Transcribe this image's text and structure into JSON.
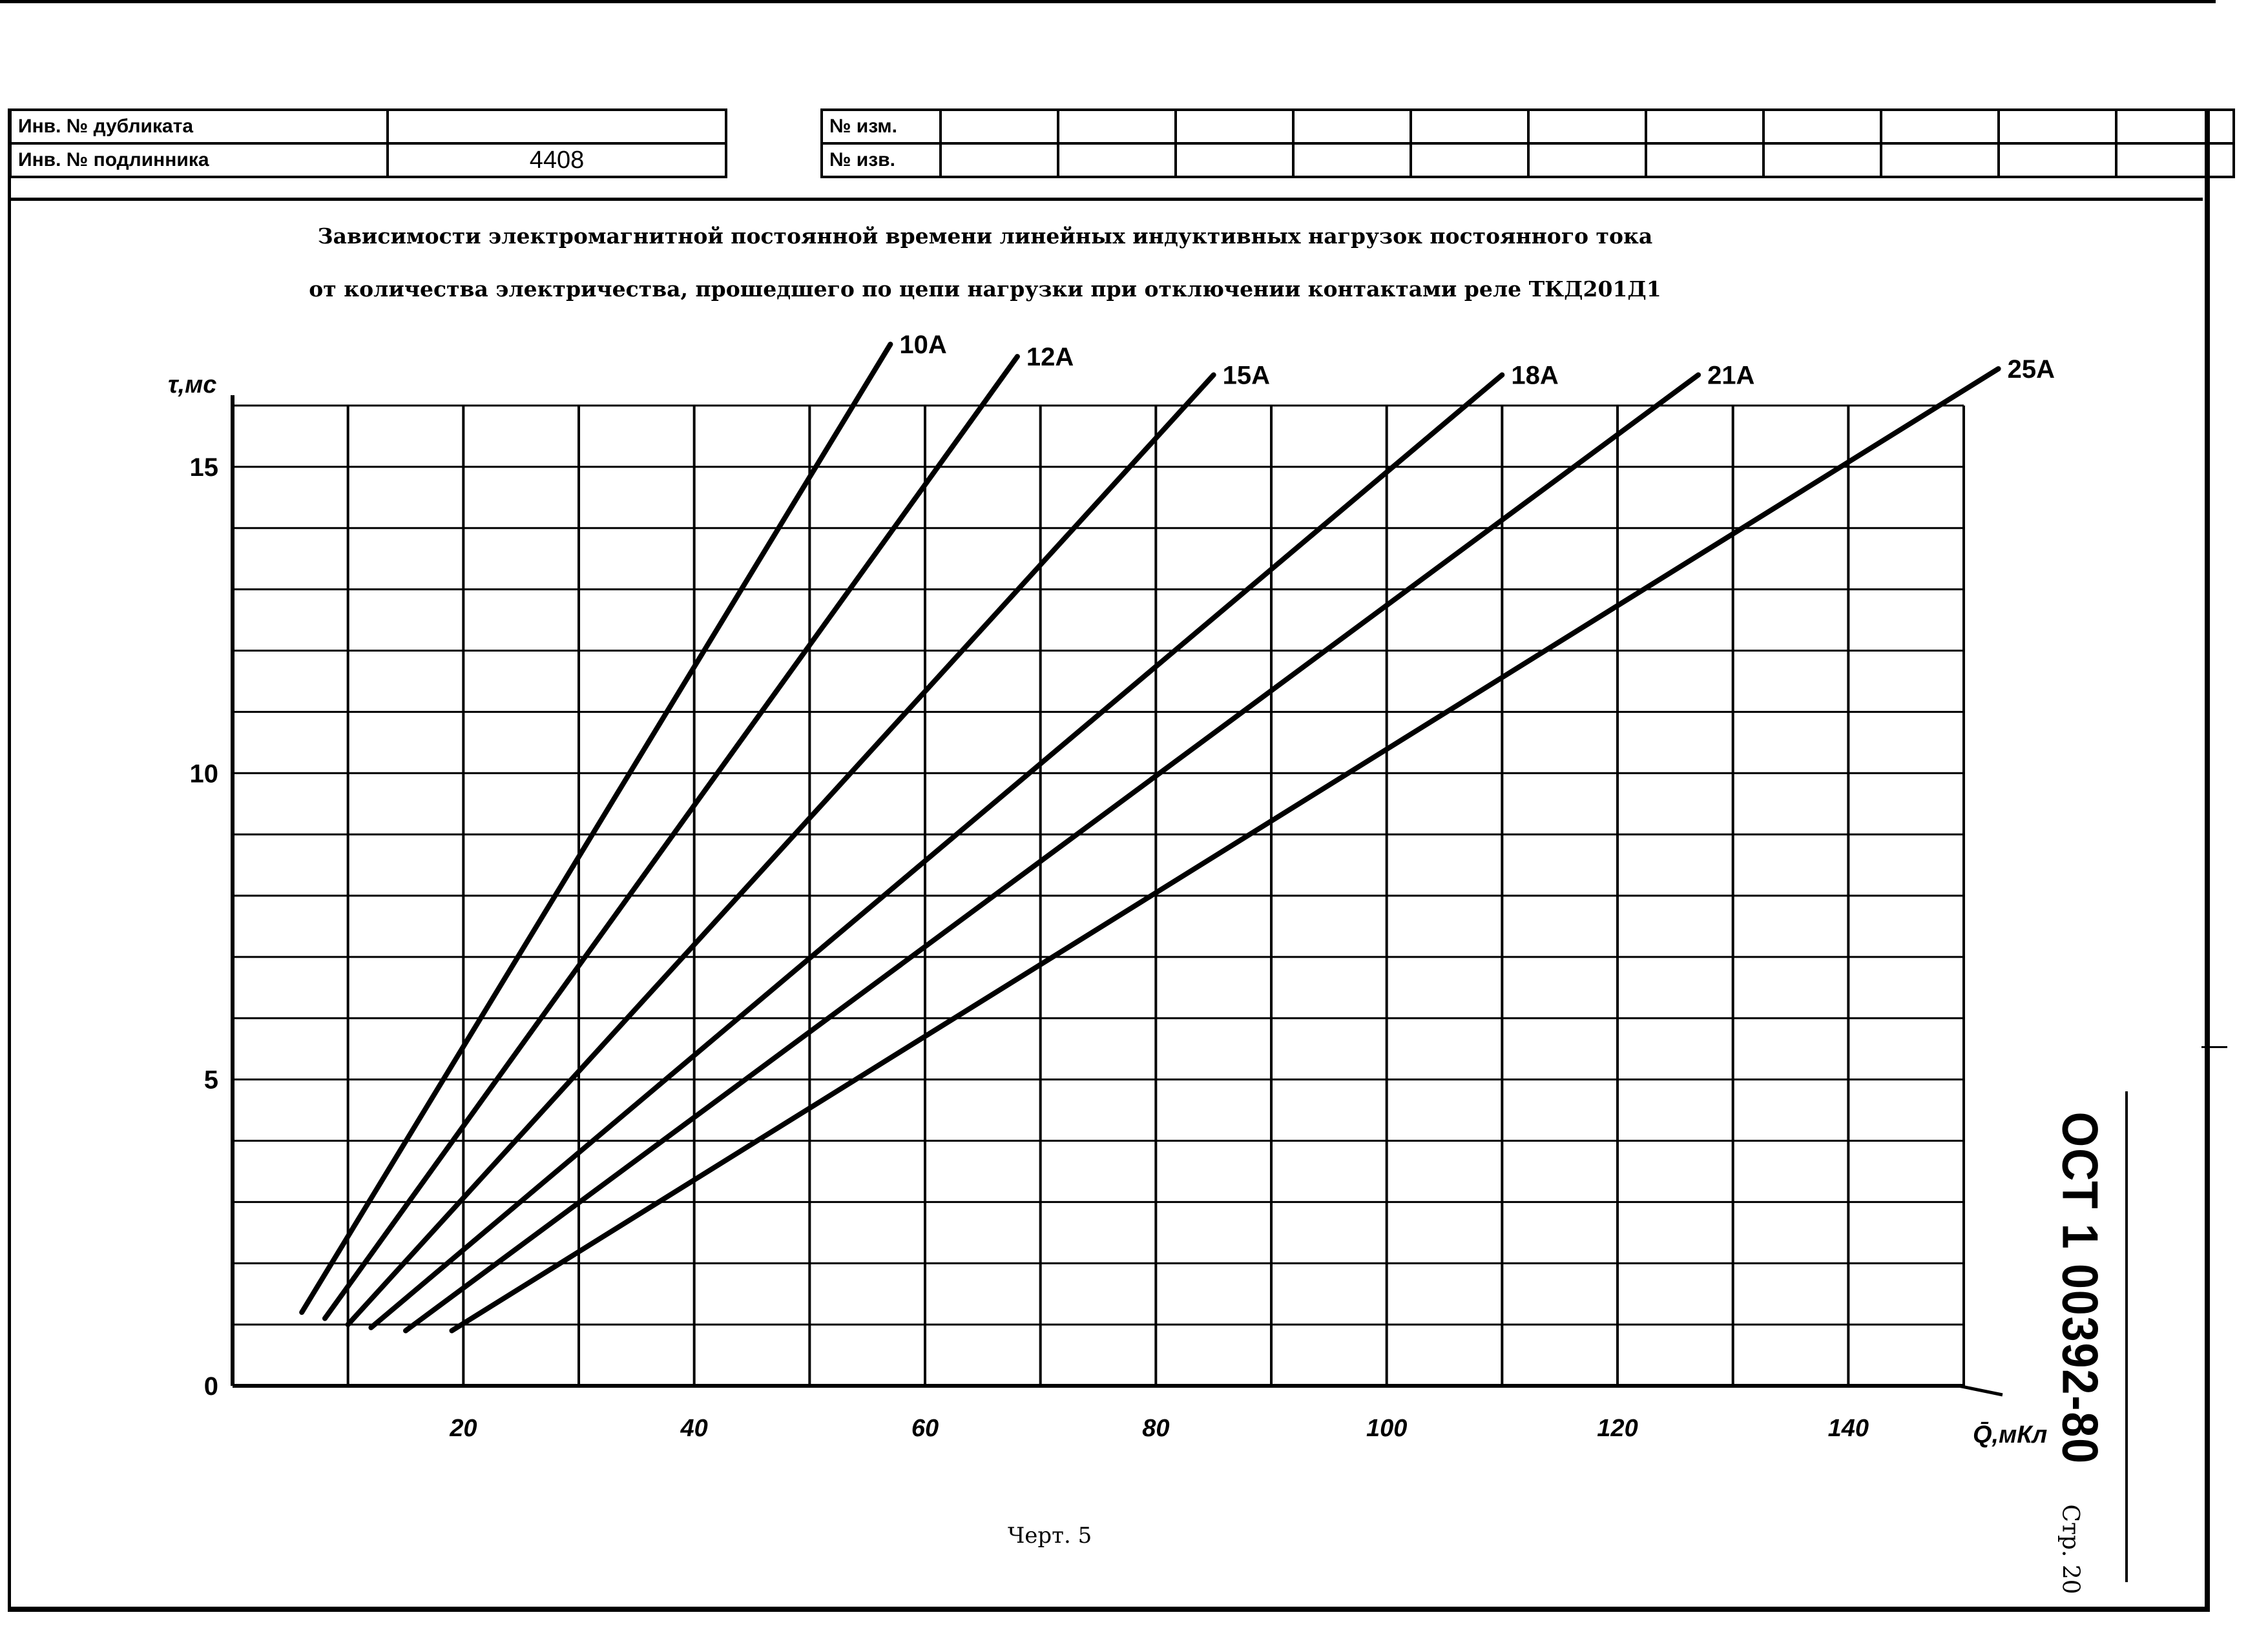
{
  "stamp_header": {
    "inv_dup_label": "Инв. № дубликата",
    "inv_dup_value": "",
    "inv_orig_label": "Инв. № подлинника",
    "inv_orig_value": "4408",
    "izm_label": "№ изм.",
    "izv_label": "№ изв."
  },
  "title_line1": "Зависимости электромагнитной постоянной времени линейных индуктивных нагрузок постоянного тока",
  "title_line2": "от количества электричества, прошедшего по цепи нагрузки при отключении контактами реле ТКД201Д1",
  "caption": "Черт. 5",
  "document_code": "ОСТ 1 00392-80",
  "page_label": "Стр. 20",
  "chart_data": {
    "type": "line",
    "xlabel": "Q̄,мКл",
    "ylabel": "τ,мс",
    "xlim": [
      0,
      150
    ],
    "ylim": [
      0,
      16
    ],
    "x_ticks": [
      20,
      40,
      60,
      80,
      100,
      120,
      140
    ],
    "y_ticks": [
      0,
      5,
      10,
      15
    ],
    "grid": true,
    "series": [
      {
        "name": "10А",
        "x": [
          6,
          57
        ],
        "y": [
          1.2,
          17.0
        ]
      },
      {
        "name": "12А",
        "x": [
          8,
          68
        ],
        "y": [
          1.1,
          16.8
        ]
      },
      {
        "name": "15А",
        "x": [
          10,
          85
        ],
        "y": [
          1.0,
          16.5
        ]
      },
      {
        "name": "18А",
        "x": [
          12,
          110
        ],
        "y": [
          0.95,
          16.5
        ]
      },
      {
        "name": "21А",
        "x": [
          15,
          127
        ],
        "y": [
          0.9,
          16.5
        ]
      },
      {
        "name": "25А",
        "x": [
          19,
          153
        ],
        "y": [
          0.9,
          16.6
        ]
      }
    ]
  }
}
